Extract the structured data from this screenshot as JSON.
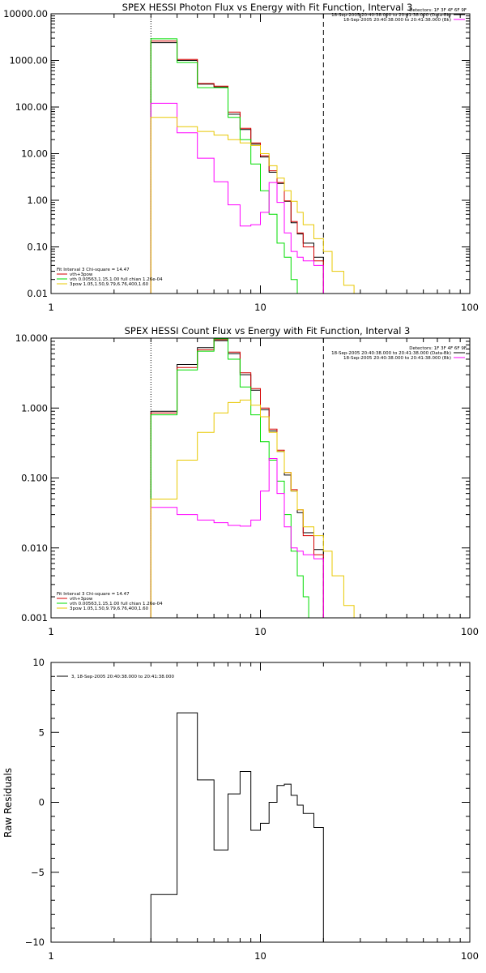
{
  "chart_data": [
    {
      "type": "line",
      "title": "SPEX HESSI Photon Flux vs Energy with Fit Function, Interval 3",
      "xlabel": "",
      "ylabel": "",
      "xscale": "log",
      "yscale": "log",
      "xlim": [
        1,
        100
      ],
      "ylim": [
        0.01,
        10000
      ],
      "x_ticks": [
        "1",
        "10",
        "100"
      ],
      "y_ticks": [
        "0.01",
        "0.10",
        "1.00",
        "10.00",
        "100.00",
        "1000.00",
        "10000.00"
      ],
      "vlines": {
        "dotted": 3,
        "dashed": 20
      },
      "header_text": [
        "Detectors: 1F 3F 4F 6F 9F",
        "18-Sep-2005 20:40:38.000 to 20:41:38.000 (Data-Bk)",
        "18-Sep-2005 20:40:38.000 to 20:41:38.000 (Bk)"
      ],
      "legend_text": [
        "Fit Interval 3   Chi-square = 14.47",
        "vth+3pow",
        "vth 0.00563,1.15,1.00  full chian 1.26e-04",
        "3pow 1.05,1.50,9.79,6.76,400,1.60"
      ],
      "series": [
        {
          "color": "#000000",
          "edges": [
            3,
            4,
            5,
            6,
            7,
            8,
            9,
            10,
            11,
            12,
            13,
            14,
            15,
            16,
            18,
            20
          ],
          "values": [
            2400,
            1000,
            310,
            270,
            70,
            33,
            16,
            8.5,
            4,
            2.3,
            0.95,
            0.33,
            0.19,
            0.12,
            0.06
          ]
        },
        {
          "color": "#d40000",
          "edges": [
            3,
            4,
            5,
            6,
            7,
            8,
            9,
            10,
            11,
            12,
            13,
            14,
            15,
            16,
            18,
            20
          ],
          "values": [
            2600,
            1050,
            320,
            280,
            78,
            35,
            17,
            9,
            4.3,
            2.4,
            0.97,
            0.35,
            0.2,
            0.1,
            0.05
          ]
        },
        {
          "color": "#00dd00",
          "edges": [
            3,
            4,
            5,
            6,
            7,
            8,
            9,
            10,
            11,
            12,
            13,
            14,
            15
          ],
          "values": [
            2900,
            900,
            260,
            260,
            60,
            20,
            6,
            1.6,
            0.5,
            0.12,
            0.06,
            0.02
          ]
        },
        {
          "color": "#ff00ff",
          "edges": [
            3,
            4,
            5,
            6,
            7,
            8,
            9,
            10,
            11,
            12,
            13,
            14,
            15,
            16,
            18,
            20
          ],
          "values": [
            120,
            28,
            8,
            2.5,
            0.8,
            0.28,
            0.3,
            0.55,
            2.4,
            0.9,
            0.2,
            0.08,
            0.06,
            0.05,
            0.04
          ]
        },
        {
          "color": "#e8c800",
          "edges": [
            3,
            4,
            5,
            6,
            7,
            8,
            9,
            10,
            11,
            12,
            13,
            14,
            15,
            16,
            18,
            20,
            22,
            25,
            28
          ],
          "values": [
            60,
            38,
            30,
            25,
            20,
            17,
            15,
            10,
            5.5,
            3,
            1.6,
            0.95,
            0.55,
            0.3,
            0.15,
            0.08,
            0.03,
            0.015
          ]
        }
      ]
    },
    {
      "type": "line",
      "title": "SPEX HESSI Count Flux vs Energy with Fit Function, Interval 3",
      "xlabel": "",
      "ylabel": "",
      "xscale": "log",
      "yscale": "log",
      "xlim": [
        1,
        100
      ],
      "ylim": [
        0.001,
        10
      ],
      "x_ticks": [
        "1",
        "10",
        "100"
      ],
      "y_ticks": [
        "0.001",
        "0.010",
        "0.100",
        "1.000",
        "10.000"
      ],
      "vlines": {
        "dotted": 3,
        "dashed": 20
      },
      "header_text": [
        "Detectors: 1F 3F 4F 6F 9F",
        "18-Sep-2005 20:40:38.000 to 20:41:38.000 (Data-Bk)",
        "18-Sep-2005 20:40:38.000 to 20:41:38.000 (Bk)"
      ],
      "legend_text": [
        "Fit Interval 3   Chi-square = 14.47",
        "vth+3pow",
        "vth 0.00563,1.15,1.00  full chian 1.26e-04",
        "3pow 1.05,1.50,9.79,6.76,400,1.60"
      ],
      "series": [
        {
          "color": "#000000",
          "edges": [
            3,
            4,
            5,
            6,
            7,
            8,
            9,
            10,
            11,
            12,
            13,
            14,
            15,
            16,
            18,
            20
          ],
          "values": [
            0.9,
            4.2,
            7.3,
            9.2,
            6,
            3,
            1.8,
            0.95,
            0.47,
            0.24,
            0.11,
            0.065,
            0.032,
            0.0165,
            0.0095
          ]
        },
        {
          "color": "#d40000",
          "edges": [
            3,
            4,
            5,
            6,
            7,
            8,
            9,
            10,
            11,
            12,
            13,
            14,
            15,
            16,
            18,
            20
          ],
          "values": [
            0.85,
            3.8,
            6.8,
            9.5,
            6.3,
            3.2,
            1.9,
            1,
            0.5,
            0.25,
            0.12,
            0.068,
            0.035,
            0.015,
            0.008
          ]
        },
        {
          "color": "#00dd00",
          "edges": [
            3,
            4,
            5,
            6,
            7,
            8,
            9,
            10,
            11,
            12,
            13,
            14,
            15,
            16,
            17
          ],
          "values": [
            0.8,
            3.5,
            6.5,
            9.8,
            5,
            2,
            0.8,
            0.33,
            0.18,
            0.09,
            0.03,
            0.009,
            0.004,
            0.002
          ]
        },
        {
          "color": "#ff00ff",
          "edges": [
            3,
            4,
            5,
            6,
            7,
            8,
            9,
            10,
            11,
            12,
            13,
            14,
            15,
            16,
            18,
            20
          ],
          "values": [
            0.038,
            0.03,
            0.025,
            0.023,
            0.021,
            0.0205,
            0.025,
            0.065,
            0.19,
            0.06,
            0.02,
            0.01,
            0.009,
            0.008,
            0.007
          ]
        },
        {
          "color": "#e8c800",
          "edges": [
            3,
            4,
            5,
            6,
            7,
            8,
            9,
            10,
            11,
            12,
            13,
            14,
            15,
            16,
            18,
            20,
            22,
            25,
            28
          ],
          "values": [
            0.05,
            0.18,
            0.45,
            0.85,
            1.2,
            1.3,
            1.1,
            0.75,
            0.45,
            0.24,
            0.12,
            0.065,
            0.035,
            0.02,
            0.015,
            0.009,
            0.004,
            0.0015
          ]
        }
      ]
    },
    {
      "type": "line",
      "title": "",
      "xlabel": "",
      "ylabel": "Raw Residuals",
      "xscale": "log",
      "yscale": "linear",
      "xlim": [
        1,
        100
      ],
      "ylim": [
        -10,
        10
      ],
      "x_ticks": [
        "1",
        "10",
        "100"
      ],
      "y_ticks": [
        "−10",
        "−5",
        "0",
        "5",
        "10"
      ],
      "legend_text": [
        "3, 18-Sep-2005 20:40:38.000 to 20:41:38.000"
      ],
      "series": [
        {
          "color": "#000000",
          "edges": [
            3,
            4,
            5,
            6,
            7,
            7.5,
            8,
            9,
            10,
            11,
            12,
            13,
            14,
            15,
            16,
            18,
            20
          ],
          "values": [
            -6.6,
            6.4,
            1.6,
            -3.4,
            0.6,
            0.6,
            2.2,
            -2,
            -1.5,
            0,
            1.2,
            1.3,
            0.5,
            -0.2,
            -0.8,
            -1.8
          ]
        }
      ]
    }
  ]
}
